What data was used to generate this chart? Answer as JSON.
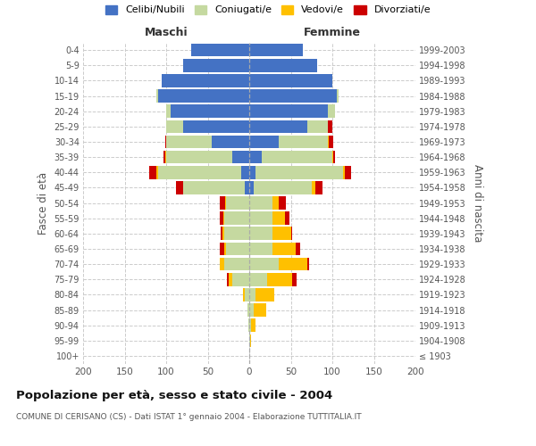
{
  "age_groups": [
    "100+",
    "95-99",
    "90-94",
    "85-89",
    "80-84",
    "75-79",
    "70-74",
    "65-69",
    "60-64",
    "55-59",
    "50-54",
    "45-49",
    "40-44",
    "35-39",
    "30-34",
    "25-29",
    "20-24",
    "15-19",
    "10-14",
    "5-9",
    "0-4"
  ],
  "birth_years": [
    "≤ 1903",
    "1904-1908",
    "1909-1913",
    "1914-1918",
    "1919-1923",
    "1924-1928",
    "1929-1933",
    "1934-1938",
    "1939-1943",
    "1944-1948",
    "1949-1953",
    "1954-1958",
    "1959-1963",
    "1964-1968",
    "1969-1973",
    "1974-1978",
    "1979-1983",
    "1984-1988",
    "1989-1993",
    "1994-1998",
    "1999-2003"
  ],
  "maschi": {
    "celibi": [
      0,
      0,
      0,
      0,
      0,
      0,
      0,
      0,
      0,
      0,
      0,
      5,
      10,
      20,
      45,
      80,
      95,
      110,
      105,
      80,
      70
    ],
    "coniugati": [
      0,
      0,
      1,
      2,
      5,
      20,
      30,
      28,
      30,
      30,
      28,
      75,
      100,
      80,
      55,
      20,
      5,
      2,
      0,
      0,
      0
    ],
    "vedovi": [
      0,
      0,
      0,
      0,
      2,
      5,
      5,
      2,
      2,
      1,
      1,
      0,
      2,
      1,
      0,
      0,
      0,
      0,
      0,
      0,
      0
    ],
    "divorziati": [
      0,
      0,
      0,
      0,
      0,
      2,
      1,
      5,
      2,
      5,
      6,
      8,
      8,
      2,
      1,
      0,
      0,
      0,
      0,
      0,
      0
    ]
  },
  "femmine": {
    "nubili": [
      0,
      0,
      0,
      0,
      0,
      0,
      0,
      0,
      0,
      0,
      0,
      5,
      8,
      15,
      35,
      70,
      95,
      105,
      100,
      82,
      65
    ],
    "coniugate": [
      0,
      1,
      2,
      5,
      8,
      22,
      35,
      28,
      28,
      28,
      28,
      70,
      105,
      85,
      60,
      25,
      8,
      2,
      0,
      0,
      0
    ],
    "vedove": [
      0,
      1,
      5,
      15,
      22,
      30,
      35,
      28,
      22,
      15,
      8,
      5,
      2,
      1,
      1,
      0,
      0,
      0,
      0,
      0,
      0
    ],
    "divorziate": [
      0,
      0,
      0,
      0,
      0,
      5,
      2,
      5,
      2,
      5,
      8,
      8,
      8,
      2,
      5,
      5,
      0,
      0,
      0,
      0,
      0
    ]
  },
  "colors": {
    "celibi_nubili": "#4472c4",
    "coniugati": "#c5d9a0",
    "vedovi": "#ffc000",
    "divorziati": "#cc0000"
  },
  "xlim": 200,
  "title": "Popolazione per età, sesso e stato civile - 2004",
  "subtitle": "COMUNE DI CERISANO (CS) - Dati ISTAT 1° gennaio 2004 - Elaborazione TUTTITALIA.IT",
  "ylabel_left": "Fasce di età",
  "ylabel_right": "Anni di nascita",
  "xlabel_maschi": "Maschi",
  "xlabel_femmine": "Femmine",
  "legend_labels": [
    "Celibi/Nubili",
    "Coniugati/e",
    "Vedovi/e",
    "Divorziati/e"
  ],
  "background_color": "#ffffff"
}
